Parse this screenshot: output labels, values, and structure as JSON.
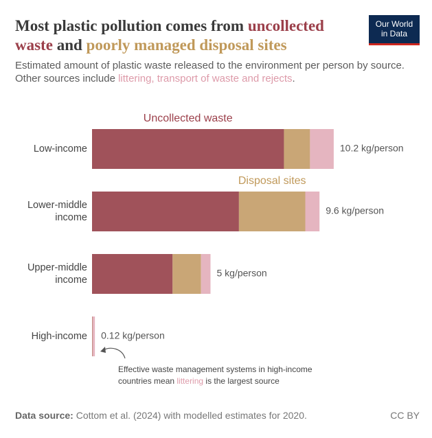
{
  "chart_data": {
    "type": "stacked-bar",
    "orientation": "horizontal",
    "title": {
      "part1": "Most plastic pollution comes from ",
      "part2": "uncollected waste",
      "part3": " and ",
      "part4": "poorly managed disposal sites"
    },
    "subtitle": {
      "part1": "Estimated amount of plastic waste released to the environment per person by source. Other sources include ",
      "part2": "littering, transport of waste and rejects",
      "part3": "."
    },
    "categories": [
      "Low-income",
      "Lower-middle income",
      "Upper-middle income",
      "High-income"
    ],
    "series": [
      {
        "name": "Uncollected waste",
        "color": "#a0525a",
        "label_color": "#9b3f4a",
        "values": [
          8.1,
          6.2,
          3.4,
          0.01
        ]
      },
      {
        "name": "Disposal sites",
        "color": "#c9a676",
        "label_color": "#c0995a",
        "values": [
          1.1,
          2.8,
          1.2,
          0.01
        ]
      },
      {
        "color": "#e5b5c0",
        "values": [
          1.0,
          0.6,
          0.4,
          0.1
        ]
      }
    ],
    "totals": [
      10.2,
      9.6,
      5,
      0.12
    ],
    "total_labels": [
      "10.2 kg/person",
      "9.6 kg/person",
      "5 kg/person",
      "0.12 kg/person"
    ],
    "annotation": {
      "line1": "Effective waste management systems in high-income",
      "line2a": "countries mean ",
      "line2b": "littering",
      "line2c": " is the largest source"
    },
    "source_label": "Data source:",
    "source": "Cottom et al. (2024) with modelled estimates for 2020.",
    "license": "CC BY",
    "logo": {
      "line1": "Our World",
      "line2": "in Data"
    }
  }
}
